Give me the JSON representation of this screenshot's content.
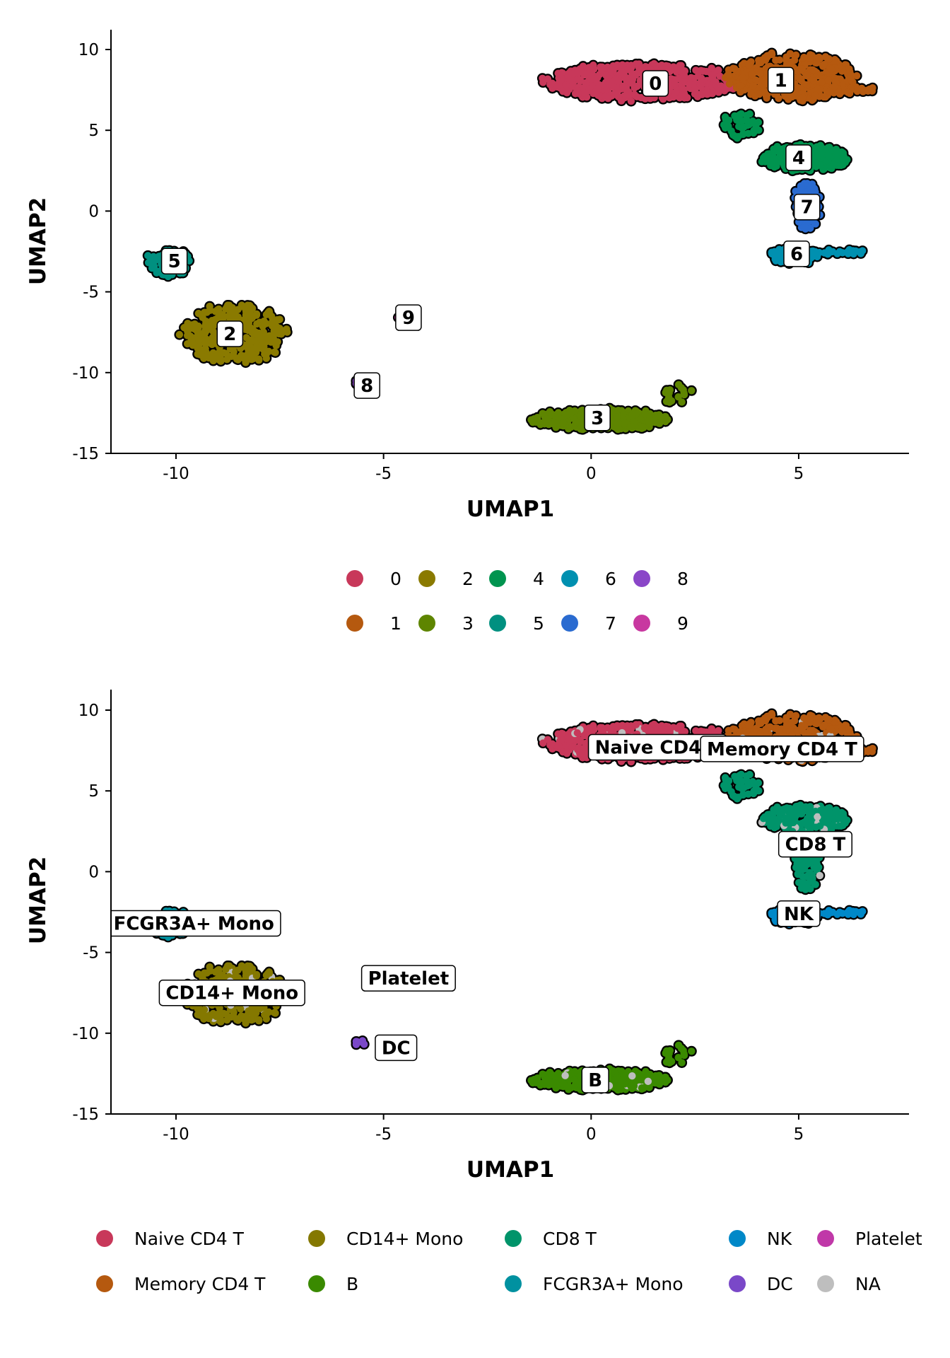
{
  "chart_data": [
    {
      "type": "scatter",
      "title": "",
      "xlabel": "UMAP1",
      "ylabel": "UMAP2",
      "xlim": [
        -11.8,
        7.5
      ],
      "ylim": [
        -15,
        11.5
      ],
      "xticks": [
        "-10",
        "-5",
        "0",
        "5"
      ],
      "yticks": [
        "10",
        "5",
        "0",
        "-5",
        "-10",
        "-15"
      ],
      "legend_position": "bottom",
      "legend": [
        {
          "label": "0",
          "color": "#c8385a"
        },
        {
          "label": "1",
          "color": "#b5590f"
        },
        {
          "label": "2",
          "color": "#8a7a00"
        },
        {
          "label": "3",
          "color": "#5e8500"
        },
        {
          "label": "4",
          "color": "#00944f"
        },
        {
          "label": "5",
          "color": "#009080"
        },
        {
          "label": "6",
          "color": "#0090b0"
        },
        {
          "label": "7",
          "color": "#2a6bd0"
        },
        {
          "label": "8",
          "color": "#8a46c8"
        },
        {
          "label": "9",
          "color": "#c838a0"
        }
      ],
      "labels": [
        {
          "text": "0",
          "x": 1.55,
          "y": 7.9
        },
        {
          "text": "1",
          "x": 4.57,
          "y": 8.1
        },
        {
          "text": "4",
          "x": 5.0,
          "y": 3.3
        },
        {
          "text": "7",
          "x": 5.2,
          "y": 0.25
        },
        {
          "text": "6",
          "x": 4.95,
          "y": -2.65
        },
        {
          "text": "5",
          "x": -10.04,
          "y": -3.1
        },
        {
          "text": "2",
          "x": -8.7,
          "y": -7.6
        },
        {
          "text": "9",
          "x": -4.4,
          "y": -6.6
        },
        {
          "text": "8",
          "x": -5.4,
          "y": -10.8
        },
        {
          "text": "3",
          "x": 0.15,
          "y": -12.8
        }
      ]
    },
    {
      "type": "scatter",
      "title": "",
      "xlabel": "UMAP1",
      "ylabel": "UMAP2",
      "xlim": [
        -11.8,
        7.5
      ],
      "ylim": [
        -15,
        11.5
      ],
      "xticks": [
        "-10",
        "-5",
        "0",
        "5"
      ],
      "yticks": [
        "10",
        "5",
        "0",
        "-5",
        "-10",
        "-15"
      ],
      "legend_position": "bottom",
      "legend": [
        {
          "label": "Naive CD4 T",
          "color": "#c8385a"
        },
        {
          "label": "Memory CD4 T",
          "color": "#b5590f"
        },
        {
          "label": "CD14+ Mono",
          "color": "#847800"
        },
        {
          "label": "B",
          "color": "#3a8a00"
        },
        {
          "label": "CD8 T",
          "color": "#00946a"
        },
        {
          "label": "FCGR3A+ Mono",
          "color": "#0091a0"
        },
        {
          "label": "NK",
          "color": "#0088c8"
        },
        {
          "label": "DC",
          "color": "#7a48c8"
        },
        {
          "label": "Platelet",
          "color": "#c038a8"
        },
        {
          "label": "NA",
          "color": "#bebebe"
        }
      ],
      "labels": [
        {
          "text": "Naive CD4 T",
          "x": 1.6,
          "y": 7.7
        },
        {
          "text": "Memory CD4 T",
          "x": 4.6,
          "y": 7.6
        },
        {
          "text": "CD8 T",
          "x": 5.4,
          "y": 1.7
        },
        {
          "text": "NK",
          "x": 5.0,
          "y": -2.6
        },
        {
          "text": "FCGR3A+ Mono",
          "x": -9.57,
          "y": -3.2
        },
        {
          "text": "CD14+ Mono",
          "x": -8.65,
          "y": -7.5
        },
        {
          "text": "Platelet",
          "x": -4.4,
          "y": -6.6
        },
        {
          "text": "DC",
          "x": -4.7,
          "y": -10.9
        },
        {
          "text": "B",
          "x": 0.1,
          "y": -12.9
        }
      ]
    }
  ],
  "clusters": [
    {
      "id": "0",
      "celltype": 0,
      "shape": [
        [
          1.2,
          8.0,
          2.3,
          1.15,
          420
        ]
      ]
    },
    {
      "id": "1",
      "celltype": 1,
      "shape": [
        [
          4.8,
          8.3,
          1.55,
          1.5,
          380
        ],
        [
          6.2,
          7.5,
          0.6,
          0.25,
          30
        ]
      ]
    },
    {
      "id": "2",
      "celltype": 2,
      "shape": [
        [
          -8.6,
          -7.6,
          1.25,
          1.9,
          320
        ]
      ]
    },
    {
      "id": "3",
      "celltype": 3,
      "shape": [
        [
          0.2,
          -12.9,
          1.65,
          0.6,
          330
        ],
        [
          2.1,
          -11.4,
          0.35,
          0.6,
          20
        ]
      ]
    },
    {
      "id": "4",
      "celltype": 4,
      "shape": [
        [
          5.2,
          3.3,
          1.05,
          0.8,
          200
        ],
        [
          3.6,
          5.3,
          0.45,
          0.8,
          40
        ]
      ]
    },
    {
      "id": "5",
      "celltype": 5,
      "shape": [
        [
          -10.15,
          -3.2,
          0.5,
          0.85,
          90
        ]
      ]
    },
    {
      "id": "6",
      "celltype": 6,
      "shape": [
        [
          4.9,
          -2.75,
          0.55,
          0.5,
          90
        ],
        [
          6.0,
          -2.55,
          0.5,
          0.15,
          20
        ]
      ]
    },
    {
      "id": "7",
      "celltype": 4,
      "shape": [
        [
          5.2,
          0.3,
          0.28,
          1.6,
          80
        ]
      ]
    },
    {
      "id": "8",
      "celltype": 7,
      "shape": [
        [
          -5.55,
          -10.55,
          0.2,
          0.2,
          6
        ]
      ]
    },
    {
      "id": "9",
      "celltype": 8,
      "shape": [
        [
          -4.6,
          -6.6,
          0.02,
          0.02,
          2
        ]
      ]
    }
  ],
  "na_fraction": 0.04
}
